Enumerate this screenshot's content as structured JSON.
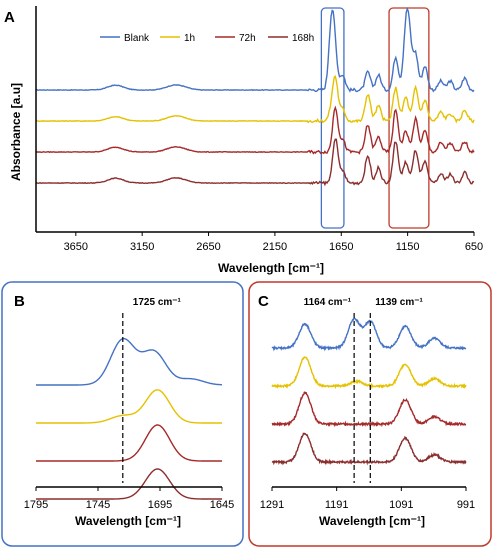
{
  "chart_data": [
    {
      "panel": "A",
      "type": "line",
      "xlabel": "Wavelength [cm⁻¹]",
      "ylabel": "Absorbance [a.u]",
      "x_reversed": true,
      "xlim": [
        3950,
        650
      ],
      "xticks": [
        "3650",
        "3150",
        "2650",
        "2150",
        "1650",
        "1150",
        "650"
      ],
      "xtick_values": [
        3650,
        3150,
        2650,
        2150,
        1650,
        1150,
        650
      ],
      "legend": [
        "Blank",
        "1h",
        "72h",
        "168h"
      ],
      "legend_position": "top",
      "highlights": [
        {
          "x_range": [
            1800,
            1630
          ],
          "color": "#4472c4"
        },
        {
          "x_range": [
            1290,
            990
          ],
          "color": "#c0392b"
        }
      ],
      "series": [
        {
          "name": "Blank",
          "color": "#4472c4",
          "offset": 3,
          "peaks": [
            [
              3350,
              0.08
            ],
            [
              2920,
              0.06
            ],
            [
              2850,
              0.04
            ],
            [
              1725,
              1.0
            ],
            [
              1700,
              0.6
            ],
            [
              1640,
              0.25
            ],
            [
              1450,
              0.3
            ],
            [
              1370,
              0.25
            ],
            [
              1240,
              0.55
            ],
            [
              1164,
              0.85
            ],
            [
              1139,
              0.8
            ],
            [
              1090,
              0.6
            ],
            [
              1020,
              0.4
            ],
            [
              900,
              0.15
            ],
            [
              830,
              0.15
            ],
            [
              720,
              0.2
            ]
          ]
        },
        {
          "name": "1h",
          "color": "#e5c100",
          "offset": 2,
          "peaks": [
            [
              3350,
              0.07
            ],
            [
              2920,
              0.06
            ],
            [
              2850,
              0.04
            ],
            [
              1725,
              0.15
            ],
            [
              1695,
              0.7
            ],
            [
              1640,
              0.2
            ],
            [
              1450,
              0.45
            ],
            [
              1370,
              0.25
            ],
            [
              1240,
              0.55
            ],
            [
              1164,
              0.4
            ],
            [
              1090,
              0.55
            ],
            [
              1020,
              0.35
            ],
            [
              900,
              0.15
            ],
            [
              830,
              0.12
            ],
            [
              720,
              0.18
            ]
          ]
        },
        {
          "name": "72h",
          "color": "#a52a2a",
          "offset": 1,
          "peaks": [
            [
              3350,
              0.08
            ],
            [
              2920,
              0.06
            ],
            [
              2850,
              0.04
            ],
            [
              1695,
              0.75
            ],
            [
              1640,
              0.2
            ],
            [
              1450,
              0.45
            ],
            [
              1370,
              0.25
            ],
            [
              1240,
              0.7
            ],
            [
              1164,
              0.35
            ],
            [
              1090,
              0.55
            ],
            [
              1020,
              0.35
            ],
            [
              900,
              0.15
            ],
            [
              830,
              0.15
            ],
            [
              720,
              0.18
            ]
          ]
        },
        {
          "name": "168h",
          "color": "#8b2e2e",
          "offset": 0,
          "peaks": [
            [
              3350,
              0.08
            ],
            [
              2920,
              0.06
            ],
            [
              2850,
              0.04
            ],
            [
              1695,
              0.75
            ],
            [
              1640,
              0.2
            ],
            [
              1450,
              0.45
            ],
            [
              1370,
              0.25
            ],
            [
              1240,
              0.7
            ],
            [
              1164,
              0.35
            ],
            [
              1090,
              0.55
            ],
            [
              1020,
              0.35
            ],
            [
              900,
              0.15
            ],
            [
              830,
              0.15
            ],
            [
              720,
              0.18
            ]
          ]
        }
      ]
    },
    {
      "panel": "B",
      "type": "line",
      "xlabel": "Wavelength [cm⁻¹]",
      "x_reversed": true,
      "xlim": [
        1795,
        1645
      ],
      "xticks": [
        "1795",
        "1745",
        "1695",
        "1645"
      ],
      "xtick_values": [
        1795,
        1745,
        1695,
        1645
      ],
      "annotations": [
        {
          "label": "1725 cm⁻¹",
          "x": 1725
        }
      ],
      "series": [
        {
          "name": "Blank",
          "color": "#4472c4",
          "offset": 3,
          "peaks": [
            [
              1725,
              0.75
            ],
            [
              1700,
              0.55
            ],
            [
              1670,
              0.1
            ]
          ]
        },
        {
          "name": "1h",
          "color": "#e5c100",
          "offset": 2,
          "peaks": [
            [
              1725,
              0.12
            ],
            [
              1697,
              0.55
            ]
          ]
        },
        {
          "name": "72h",
          "color": "#a52a2a",
          "offset": 1,
          "peaks": [
            [
              1697,
              0.6
            ]
          ]
        },
        {
          "name": "168h",
          "color": "#8b2e2e",
          "offset": 0,
          "peaks": [
            [
              1697,
              0.5
            ]
          ]
        }
      ]
    },
    {
      "panel": "C",
      "type": "line",
      "xlabel": "Wavelength [cm⁻¹]",
      "x_reversed": true,
      "xlim": [
        1291,
        991
      ],
      "xticks": [
        "1291",
        "1191",
        "1091",
        "991"
      ],
      "xtick_values": [
        1291,
        1191,
        1091,
        991
      ],
      "annotations": [
        {
          "label": "1164 cm⁻¹",
          "x": 1164
        },
        {
          "label": "1139 cm⁻¹",
          "x": 1139
        }
      ],
      "series": [
        {
          "name": "Blank",
          "color": "#4472c4",
          "offset": 3,
          "peaks": [
            [
              1240,
              0.5
            ],
            [
              1164,
              0.6
            ],
            [
              1139,
              0.55
            ],
            [
              1085,
              0.45
            ],
            [
              1040,
              0.2
            ]
          ]
        },
        {
          "name": "1h",
          "color": "#e5c100",
          "offset": 2,
          "peaks": [
            [
              1240,
              0.6
            ],
            [
              1160,
              0.1
            ],
            [
              1085,
              0.45
            ],
            [
              1040,
              0.15
            ]
          ]
        },
        {
          "name": "72h",
          "color": "#a52a2a",
          "offset": 1,
          "peaks": [
            [
              1240,
              0.65
            ],
            [
              1085,
              0.5
            ],
            [
              1040,
              0.15
            ]
          ]
        },
        {
          "name": "168h",
          "color": "#8b2e2e",
          "offset": 0,
          "peaks": [
            [
              1240,
              0.6
            ],
            [
              1085,
              0.5
            ],
            [
              1040,
              0.15
            ]
          ]
        }
      ]
    }
  ]
}
